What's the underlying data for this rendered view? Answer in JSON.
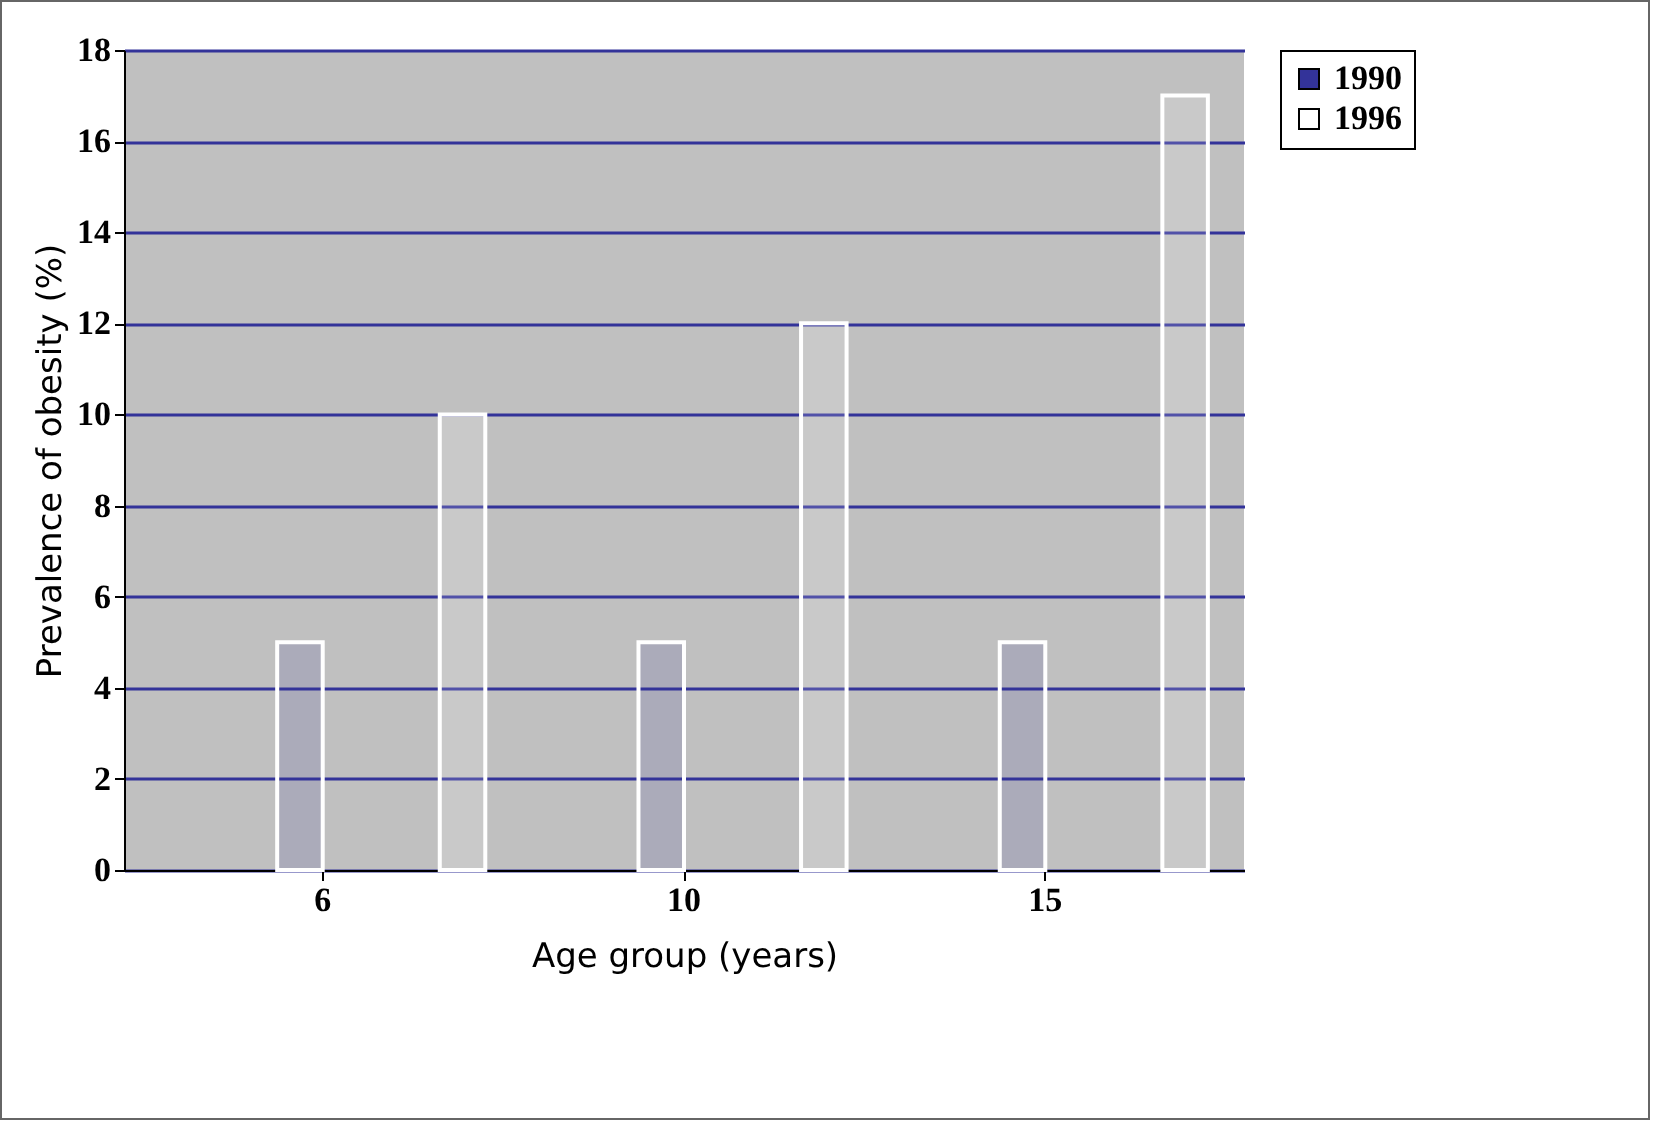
{
  "chart_data": {
    "type": "bar",
    "xlabel": "Age group (years)",
    "ylabel": "Prevalence of obesity (%)",
    "categories": [
      "6",
      "10",
      "15"
    ],
    "series": [
      {
        "name": "1990",
        "color": "#333399",
        "values": [
          5,
          5,
          5
        ]
      },
      {
        "name": "1996",
        "color": "#ffffff",
        "values": [
          10,
          12,
          17
        ]
      }
    ],
    "ylim": [
      0,
      18
    ],
    "yticks": [
      0,
      2,
      4,
      6,
      8,
      10,
      12,
      14,
      16,
      18
    ],
    "grid": "y",
    "legend": "right"
  }
}
